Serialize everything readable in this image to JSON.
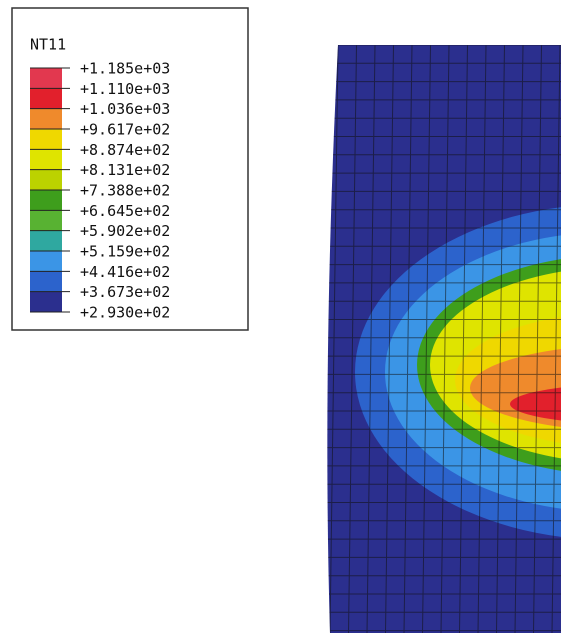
{
  "legend": {
    "title": "NT11",
    "labels": [
      "+1.185e+03",
      "+1.110e+03",
      "+1.036e+03",
      "+9.617e+02",
      "+8.874e+02",
      "+8.131e+02",
      "+7.388e+02",
      "+6.645e+02",
      "+5.902e+02",
      "+5.159e+02",
      "+4.416e+02",
      "+3.673e+02",
      "+2.930e+02"
    ],
    "colors": [
      "#e2384f",
      "#e2202c",
      "#ef8a2c",
      "#efd800",
      "#dfe400",
      "#bcd200",
      "#3e9e1c",
      "#58b232",
      "#2fa8a0",
      "#3b95e6",
      "#2c63cc",
      "#2b2f8e"
    ]
  }
}
